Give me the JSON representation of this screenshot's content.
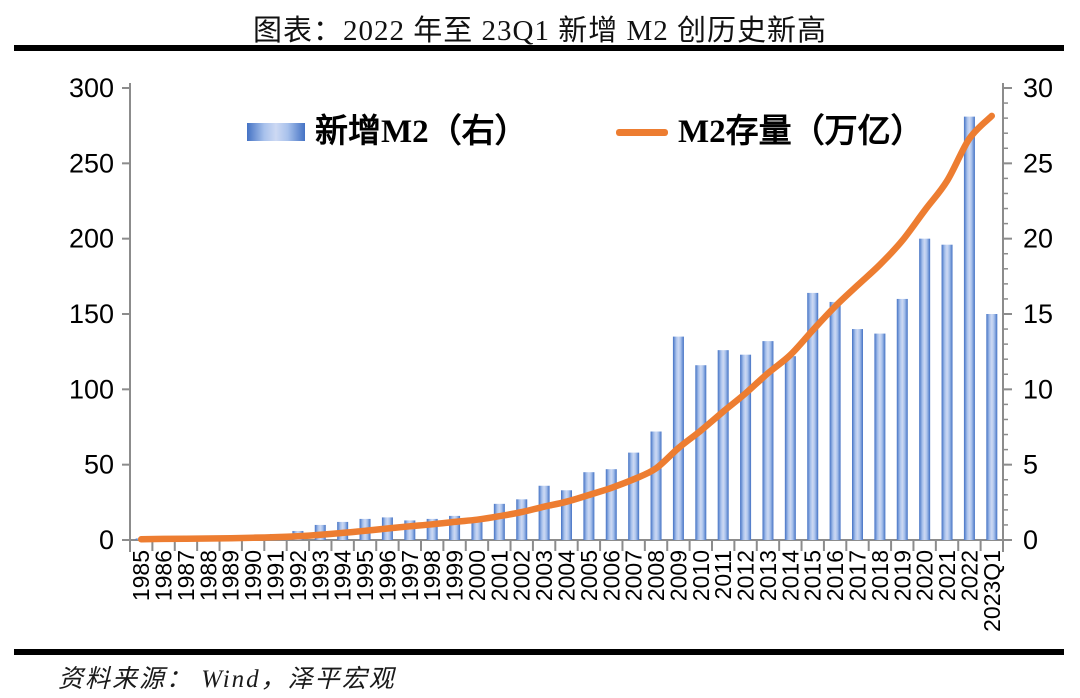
{
  "title": "图表：2022 年至 23Q1 新增 M2 创历史新高",
  "source": "资料来源： Wind，泽平宏观",
  "legend": {
    "bars": "新增M2（右）",
    "line": "M2存量（万亿）"
  },
  "colors": {
    "bar_edge": "#4472c4",
    "bar_mid": "#a9c2ec",
    "bar_center": "#cdd9f3",
    "line": "#ed7d31",
    "axis": "#8c8c8c",
    "tick_text": "#000000",
    "rule": "#000000"
  },
  "chart_data": {
    "type": "bar+line",
    "title": "图表：2022 年至 23Q1 新增 M2 创历史新高",
    "categories": [
      "1985",
      "1986",
      "1987",
      "1988",
      "1989",
      "1990",
      "1991",
      "1992",
      "1993",
      "1994",
      "1995",
      "1996",
      "1997",
      "1998",
      "1999",
      "2000",
      "2001",
      "2002",
      "2003",
      "2004",
      "2005",
      "2006",
      "2007",
      "2008",
      "2009",
      "2010",
      "2011",
      "2012",
      "2013",
      "2014",
      "2015",
      "2016",
      "2017",
      "2018",
      "2019",
      "2020",
      "2021",
      "2022",
      "2023Q1"
    ],
    "series": [
      {
        "name": "新增M2（右）",
        "type": "bar",
        "axis": "right",
        "values": [
          0.1,
          0.2,
          0.2,
          0.2,
          0.2,
          0.3,
          0.4,
          0.6,
          1.0,
          1.2,
          1.4,
          1.5,
          1.3,
          1.4,
          1.6,
          1.5,
          2.4,
          2.7,
          3.6,
          3.3,
          4.5,
          4.7,
          5.8,
          7.2,
          13.5,
          11.6,
          12.6,
          12.3,
          13.2,
          12.2,
          16.4,
          15.8,
          14.0,
          13.7,
          16.0,
          20.0,
          19.6,
          28.1,
          15.0
        ]
      },
      {
        "name": "M2存量（万亿）",
        "type": "line",
        "axis": "left",
        "values": [
          0.5,
          0.7,
          0.8,
          1.0,
          1.2,
          1.5,
          1.9,
          2.5,
          3.5,
          4.7,
          6.1,
          7.6,
          9.1,
          10.4,
          12.0,
          13.5,
          15.8,
          18.5,
          22.1,
          25.4,
          29.9,
          34.6,
          40.3,
          47.5,
          61.0,
          72.6,
          85.2,
          97.4,
          110.7,
          122.8,
          139.2,
          155.0,
          169.0,
          182.7,
          198.7,
          218.7,
          238.3,
          266.4,
          281.5
        ]
      }
    ],
    "left_axis": {
      "min": 0,
      "max": 300,
      "ticks": [
        0,
        50,
        100,
        150,
        200,
        250,
        300
      ]
    },
    "right_axis": {
      "min": 0,
      "max": 30,
      "ticks": [
        0,
        5,
        10,
        15,
        20,
        25,
        30
      ],
      "minor_step": 1
    },
    "legend_position": "top",
    "grid": false
  }
}
